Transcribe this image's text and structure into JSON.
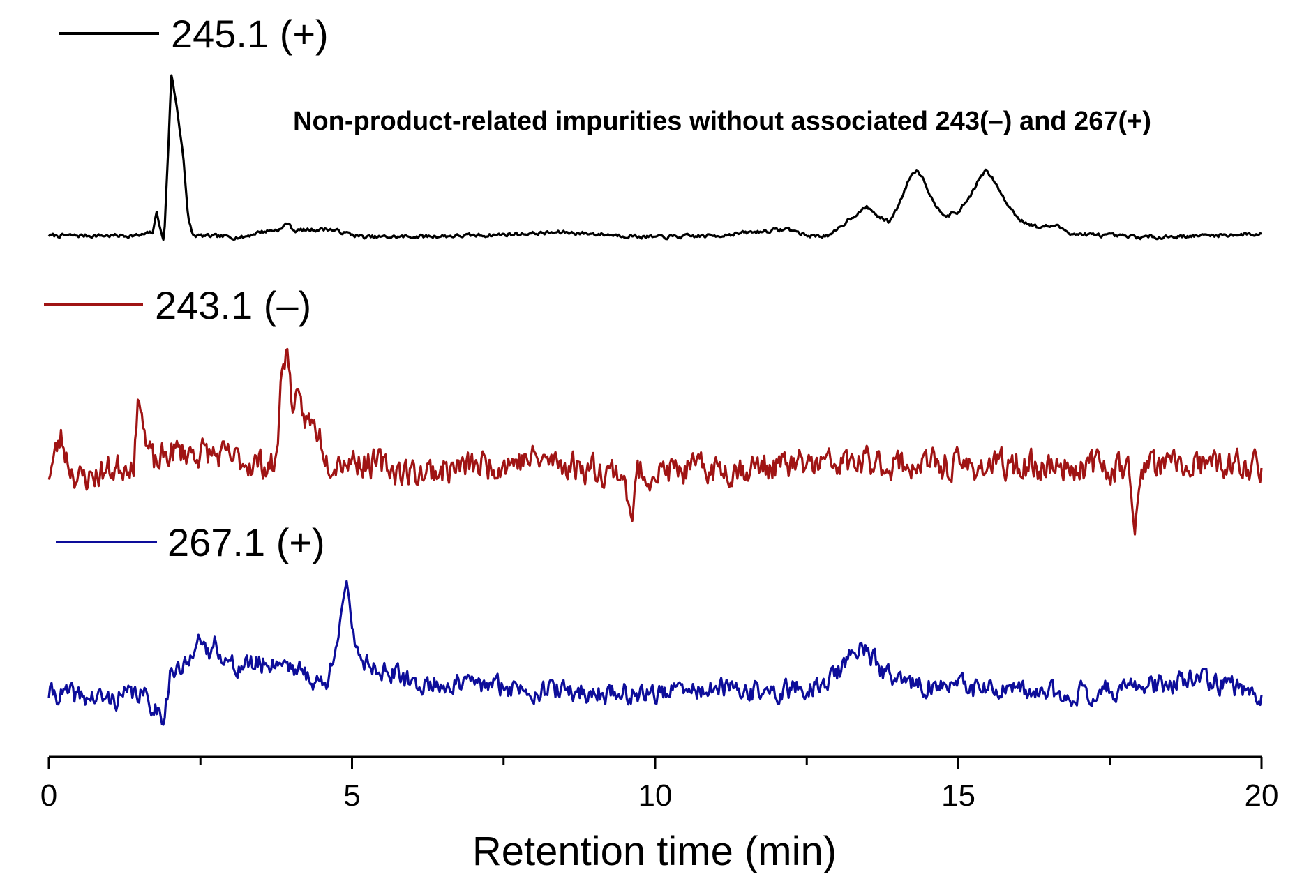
{
  "chart_data": {
    "type": "line",
    "title": "",
    "xlabel": "Retention time (min)",
    "ylabel": "",
    "xlim": [
      0,
      20
    ],
    "xticks": [
      "0",
      "5",
      "10",
      "15",
      "20"
    ],
    "annotation": "Non-product-related impurities without associated 243(–) and 267(+)",
    "y_axis_visible": false,
    "series": [
      {
        "name": "245.1 (+)",
        "color": "#000000",
        "noise": 0.018,
        "noise_seed": 7,
        "points": [
          [
            0,
            0.03
          ],
          [
            1.5,
            0.03
          ],
          [
            1.72,
            0.05
          ],
          [
            1.78,
            0.18
          ],
          [
            1.86,
            0.03
          ],
          [
            1.9,
            0.0
          ],
          [
            1.97,
            0.55
          ],
          [
            2.02,
            1.0
          ],
          [
            2.1,
            0.82
          ],
          [
            2.22,
            0.5
          ],
          [
            2.3,
            0.12
          ],
          [
            2.38,
            0.03
          ],
          [
            3.2,
            0.02
          ],
          [
            3.45,
            0.05
          ],
          [
            3.85,
            0.07
          ],
          [
            3.92,
            0.11
          ],
          [
            4.05,
            0.06
          ],
          [
            4.6,
            0.07
          ],
          [
            5.2,
            0.02
          ],
          [
            7.0,
            0.03
          ],
          [
            8.5,
            0.05
          ],
          [
            10.0,
            0.02
          ],
          [
            11.0,
            0.03
          ],
          [
            12.2,
            0.07
          ],
          [
            12.5,
            0.03
          ],
          [
            12.9,
            0.03
          ],
          [
            13.2,
            0.13
          ],
          [
            13.4,
            0.18
          ],
          [
            13.5,
            0.2
          ],
          [
            13.7,
            0.14
          ],
          [
            13.85,
            0.11
          ],
          [
            14.0,
            0.2
          ],
          [
            14.2,
            0.38
          ],
          [
            14.32,
            0.43
          ],
          [
            14.45,
            0.35
          ],
          [
            14.6,
            0.22
          ],
          [
            14.8,
            0.15
          ],
          [
            15.0,
            0.17
          ],
          [
            15.2,
            0.27
          ],
          [
            15.35,
            0.37
          ],
          [
            15.45,
            0.42
          ],
          [
            15.6,
            0.35
          ],
          [
            15.8,
            0.22
          ],
          [
            16.0,
            0.13
          ],
          [
            16.3,
            0.08
          ],
          [
            16.6,
            0.09
          ],
          [
            16.9,
            0.04
          ],
          [
            18.0,
            0.02
          ],
          [
            20.0,
            0.04
          ]
        ]
      },
      {
        "name": "243.1 (–)",
        "color": "#a01414",
        "noise": 0.17,
        "noise_seed": 23,
        "points": [
          [
            0,
            0.05
          ],
          [
            0.2,
            0.3
          ],
          [
            0.35,
            0.1
          ],
          [
            0.5,
            0.0
          ],
          [
            1.2,
            0.1
          ],
          [
            1.4,
            0.15
          ],
          [
            1.5,
            0.65
          ],
          [
            1.6,
            0.25
          ],
          [
            1.75,
            0.1
          ],
          [
            2.0,
            0.2
          ],
          [
            2.5,
            0.2
          ],
          [
            3.0,
            0.15
          ],
          [
            3.75,
            0.1
          ],
          [
            3.85,
            0.85
          ],
          [
            3.92,
            0.95
          ],
          [
            4.0,
            0.6
          ],
          [
            4.2,
            0.45
          ],
          [
            4.45,
            0.35
          ],
          [
            4.6,
            0.15
          ],
          [
            5.0,
            0.15
          ],
          [
            6.0,
            0.05
          ],
          [
            8.0,
            0.15
          ],
          [
            9.5,
            0.05
          ],
          [
            9.6,
            -0.35
          ],
          [
            9.7,
            0.05
          ],
          [
            12.0,
            0.1
          ],
          [
            13.5,
            0.12
          ],
          [
            15.0,
            0.1
          ],
          [
            17.8,
            0.1
          ],
          [
            17.9,
            -0.45
          ],
          [
            18.0,
            0.1
          ],
          [
            20.0,
            0.1
          ]
        ]
      },
      {
        "name": "267.1 (+)",
        "color": "#0d0d9a",
        "noise": 0.13,
        "noise_seed": 41,
        "points": [
          [
            0,
            0.05
          ],
          [
            1.0,
            0.0
          ],
          [
            1.5,
            0.05
          ],
          [
            1.9,
            -0.12
          ],
          [
            2.0,
            0.2
          ],
          [
            2.3,
            0.25
          ],
          [
            2.45,
            0.55
          ],
          [
            2.6,
            0.3
          ],
          [
            2.75,
            0.45
          ],
          [
            3.0,
            0.25
          ],
          [
            3.9,
            0.3
          ],
          [
            4.2,
            0.2
          ],
          [
            4.6,
            0.1
          ],
          [
            4.82,
            0.7
          ],
          [
            4.9,
            0.9
          ],
          [
            5.0,
            0.5
          ],
          [
            5.2,
            0.3
          ],
          [
            6.0,
            0.12
          ],
          [
            7.0,
            0.12
          ],
          [
            8.0,
            0.08
          ],
          [
            9.0,
            0.05
          ],
          [
            10.0,
            0.05
          ],
          [
            11.0,
            0.08
          ],
          [
            12.0,
            0.05
          ],
          [
            12.8,
            0.12
          ],
          [
            13.2,
            0.3
          ],
          [
            13.4,
            0.45
          ],
          [
            13.6,
            0.3
          ],
          [
            14.0,
            0.12
          ],
          [
            15.0,
            0.1
          ],
          [
            16.0,
            0.05
          ],
          [
            17.0,
            0.05
          ],
          [
            18.0,
            0.1
          ],
          [
            19.0,
            0.15
          ],
          [
            20.0,
            0.05
          ]
        ]
      }
    ]
  }
}
